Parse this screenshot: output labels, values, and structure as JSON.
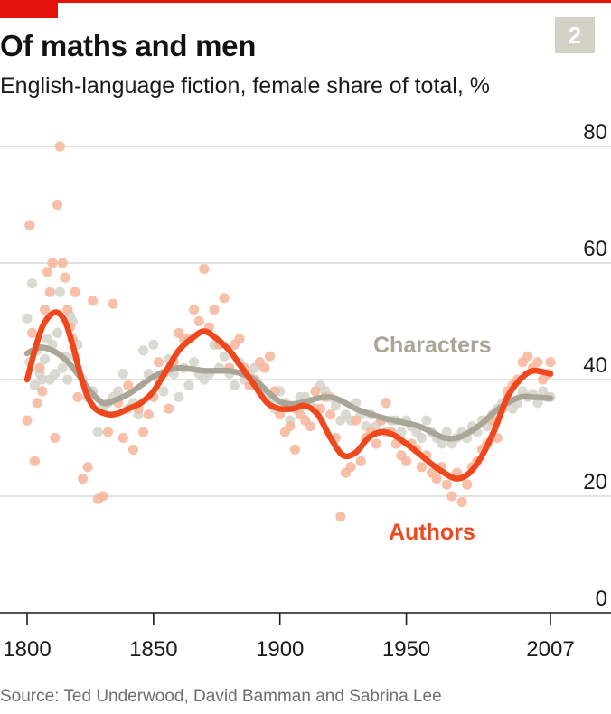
{
  "header": {
    "title": "Of maths and men",
    "subtitle": "English-language fiction, female share of total, %",
    "badge": "2"
  },
  "footer": {
    "source": "Source: Ted Underwood, David Bamman and Sabrina Lee"
  },
  "colors": {
    "accent": "#e3120b",
    "authors_line": "#f1471d",
    "authors_dots": "#f7b59a",
    "characters_line": "#a9a698",
    "characters_dots": "#d4d2ca",
    "badge_bg": "#d3d3c5",
    "grid": "#cfcfcf"
  },
  "chart_data": {
    "type": "line",
    "title": "Of maths and men",
    "subtitle": "English-language fiction, female share of total, %",
    "xlabel": "",
    "ylabel": "",
    "ylim": [
      0,
      80
    ],
    "xlim": [
      1800,
      2007
    ],
    "y_ticks": [
      0,
      20,
      40,
      60,
      80
    ],
    "x_ticks": [
      1800,
      1850,
      1900,
      1950,
      2007
    ],
    "x_tick_labels": [
      "1800",
      "1850",
      "1900",
      "1950",
      "2007"
    ],
    "grid": "horizontal",
    "legend": "direct labels on lines",
    "series": [
      {
        "name": "Characters",
        "kind": "smoothed line",
        "x": [
          1800,
          1805,
          1810,
          1815,
          1820,
          1825,
          1830,
          1835,
          1840,
          1845,
          1850,
          1855,
          1860,
          1865,
          1870,
          1875,
          1880,
          1885,
          1890,
          1895,
          1900,
          1905,
          1910,
          1915,
          1920,
          1925,
          1930,
          1935,
          1940,
          1945,
          1950,
          1955,
          1960,
          1965,
          1970,
          1975,
          1980,
          1985,
          1990,
          1995,
          2000,
          2007
        ],
        "values": [
          44.5,
          45.5,
          45,
          43.5,
          41,
          38,
          36,
          36.5,
          37.5,
          39,
          40.5,
          41.5,
          42,
          41.8,
          41.5,
          41.5,
          41.5,
          41,
          40,
          38,
          36.2,
          35.8,
          36.2,
          36.8,
          37,
          36.2,
          35,
          34.2,
          33.5,
          33,
          32.5,
          32,
          31,
          30,
          30,
          31,
          32.5,
          34.5,
          36,
          37,
          37,
          36.8
        ]
      },
      {
        "name": "Authors",
        "kind": "smoothed line",
        "x": [
          1800,
          1803,
          1806,
          1809,
          1812,
          1815,
          1818,
          1821,
          1824,
          1827,
          1830,
          1833,
          1836,
          1840,
          1845,
          1850,
          1855,
          1860,
          1865,
          1870,
          1875,
          1880,
          1885,
          1890,
          1895,
          1900,
          1905,
          1910,
          1915,
          1920,
          1925,
          1930,
          1935,
          1940,
          1945,
          1950,
          1955,
          1960,
          1965,
          1970,
          1975,
          1980,
          1985,
          1990,
          1995,
          2000,
          2007
        ],
        "values": [
          40,
          45,
          49,
          51,
          51.5,
          50,
          46,
          41,
          37,
          35,
          34.3,
          34,
          34.2,
          35,
          36,
          38,
          41.5,
          45,
          47,
          48.3,
          47,
          45,
          42,
          39,
          36,
          35,
          35,
          35.5,
          34,
          30,
          27,
          27.5,
          30,
          31,
          30.5,
          29,
          27.3,
          25.5,
          24,
          23,
          24,
          27,
          31.5,
          37,
          40,
          41.5,
          41
        ]
      },
      {
        "name": "Characters (annual)",
        "kind": "scatter",
        "x": [
          1800,
          1801,
          1802,
          1803,
          1804,
          1805,
          1806,
          1807,
          1808,
          1809,
          1810,
          1811,
          1812,
          1813,
          1814,
          1815,
          1816,
          1817,
          1818,
          1819,
          1820,
          1822,
          1824,
          1826,
          1828,
          1830,
          1832,
          1834,
          1836,
          1838,
          1840,
          1842,
          1844,
          1846,
          1848,
          1850,
          1852,
          1854,
          1856,
          1858,
          1860,
          1862,
          1864,
          1866,
          1868,
          1870,
          1872,
          1874,
          1876,
          1878,
          1880,
          1882,
          1884,
          1886,
          1888,
          1890,
          1892,
          1894,
          1896,
          1898,
          1900,
          1902,
          1904,
          1906,
          1908,
          1910,
          1912,
          1914,
          1916,
          1918,
          1920,
          1922,
          1924,
          1926,
          1928,
          1930,
          1932,
          1934,
          1936,
          1938,
          1940,
          1942,
          1944,
          1946,
          1948,
          1950,
          1952,
          1954,
          1956,
          1958,
          1960,
          1962,
          1964,
          1966,
          1968,
          1970,
          1972,
          1974,
          1976,
          1978,
          1980,
          1982,
          1984,
          1986,
          1988,
          1990,
          1992,
          1994,
          1996,
          1998,
          2000,
          2002,
          2004,
          2006,
          2007
        ],
        "values": [
          50.5,
          43,
          56.5,
          39,
          45,
          41,
          40,
          43.5,
          47,
          40,
          46,
          41,
          48,
          55,
          42,
          44,
          40,
          51,
          50,
          44,
          46,
          40,
          37,
          38,
          31,
          35,
          36,
          37,
          38,
          41,
          35,
          36,
          34,
          45,
          41,
          46,
          40,
          38,
          43.5,
          41,
          37,
          42,
          39,
          43,
          41,
          40,
          41,
          46,
          42,
          44,
          41,
          39,
          43,
          40,
          41,
          42,
          38,
          37,
          36,
          35,
          38,
          36,
          33,
          35,
          37,
          37,
          36,
          35,
          39,
          38,
          37,
          35.5,
          33,
          34,
          33,
          36,
          34,
          32,
          34,
          32,
          33,
          31,
          33,
          33,
          31,
          33,
          32,
          31,
          30,
          33,
          31,
          30,
          29,
          31,
          29,
          30,
          31,
          30,
          32,
          31,
          33,
          32,
          34,
          35,
          36,
          37,
          35,
          36,
          38,
          37,
          37.5,
          36,
          38,
          37,
          37
        ]
      },
      {
        "name": "Authors (annual)",
        "kind": "scatter",
        "x": [
          1800,
          1801,
          1802,
          1803,
          1804,
          1805,
          1806,
          1807,
          1808,
          1809,
          1810,
          1811,
          1812,
          1813,
          1814,
          1815,
          1816,
          1817,
          1818,
          1819,
          1820,
          1822,
          1824,
          1826,
          1828,
          1830,
          1832,
          1834,
          1836,
          1838,
          1840,
          1842,
          1844,
          1846,
          1848,
          1850,
          1852,
          1854,
          1856,
          1858,
          1860,
          1862,
          1864,
          1866,
          1868,
          1870,
          1872,
          1874,
          1876,
          1878,
          1880,
          1882,
          1884,
          1886,
          1888,
          1890,
          1892,
          1894,
          1896,
          1898,
          1900,
          1902,
          1904,
          1906,
          1908,
          1910,
          1912,
          1914,
          1916,
          1918,
          1920,
          1922,
          1924,
          1926,
          1928,
          1930,
          1932,
          1934,
          1936,
          1938,
          1940,
          1942,
          1944,
          1946,
          1948,
          1950,
          1952,
          1954,
          1956,
          1958,
          1960,
          1962,
          1964,
          1966,
          1968,
          1970,
          1972,
          1974,
          1976,
          1978,
          1980,
          1982,
          1984,
          1986,
          1988,
          1990,
          1992,
          1994,
          1996,
          1998,
          2000,
          2002,
          2004,
          2006,
          2007
        ],
        "values": [
          33,
          66.5,
          48,
          26,
          36,
          42,
          38,
          52,
          58.5,
          55,
          60,
          30,
          70,
          80,
          60,
          57.5,
          52,
          49,
          47,
          55,
          37,
          23,
          25,
          53.5,
          19.5,
          20,
          31,
          53,
          36,
          30,
          39,
          28,
          35,
          31,
          34,
          37,
          43,
          41,
          35,
          43,
          48,
          47,
          47,
          52,
          50,
          59,
          49,
          52,
          46,
          54,
          42,
          46,
          47,
          42,
          39,
          40,
          43,
          42,
          44,
          38,
          34,
          31,
          32,
          28,
          34,
          33,
          32,
          38,
          35,
          37,
          34,
          30,
          16.5,
          24,
          25,
          33,
          26,
          30,
          31,
          29,
          33,
          36,
          31,
          29,
          27,
          26,
          29,
          28,
          25,
          27,
          24,
          23,
          25,
          22,
          20,
          24,
          19,
          22,
          25,
          26,
          28,
          29,
          33,
          30,
          35,
          38,
          39,
          40,
          43,
          44,
          42,
          43,
          40,
          41,
          43
        ]
      }
    ],
    "annotations": [
      "Characters",
      "Authors"
    ]
  }
}
